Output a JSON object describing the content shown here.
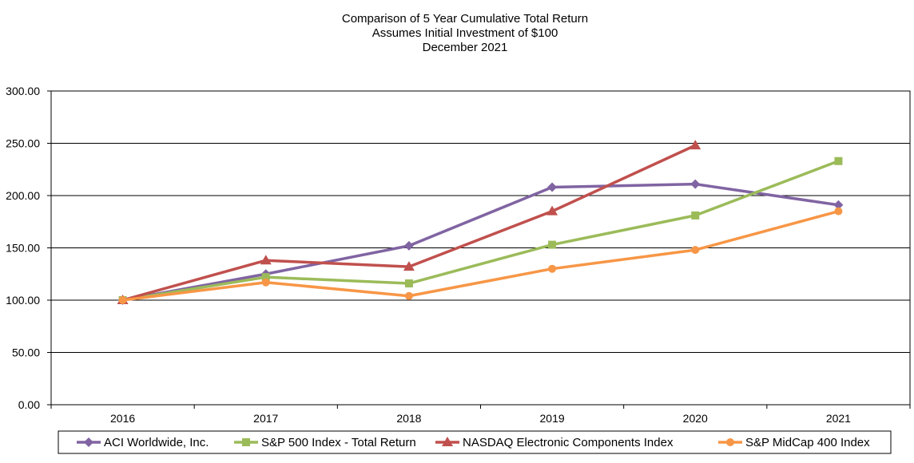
{
  "chart_data": {
    "type": "line",
    "title_lines": [
      "Comparison of 5 Year Cumulative Total Return",
      "Assumes Initial Investment of $100",
      "December 2021"
    ],
    "xlabel": "",
    "ylabel": "",
    "categories": [
      "2016",
      "2017",
      "2018",
      "2019",
      "2020",
      "2021"
    ],
    "ylim": [
      0,
      300
    ],
    "yticks": [
      "0.00",
      "50.00",
      "100.00",
      "150.00",
      "200.00",
      "250.00",
      "300.00"
    ],
    "grid": true,
    "legend_position": "bottom",
    "series": [
      {
        "name": "ACI Worldwide, Inc.",
        "color": "#8064A2",
        "marker": "diamond",
        "values": [
          100,
          125,
          152,
          208,
          211,
          191
        ]
      },
      {
        "name": "S&P 500 Index - Total Return",
        "color": "#9BBB59",
        "marker": "square",
        "values": [
          100,
          122,
          116,
          153,
          181,
          233
        ]
      },
      {
        "name": "NASDAQ Electronic Components Index",
        "color": "#C0504D",
        "marker": "triangle",
        "values": [
          100,
          138,
          132,
          185,
          248,
          null
        ]
      },
      {
        "name": "S&P MidCap 400 Index",
        "color": "#F79646",
        "marker": "circle",
        "values": [
          100,
          117,
          104,
          130,
          148,
          185
        ]
      }
    ]
  }
}
